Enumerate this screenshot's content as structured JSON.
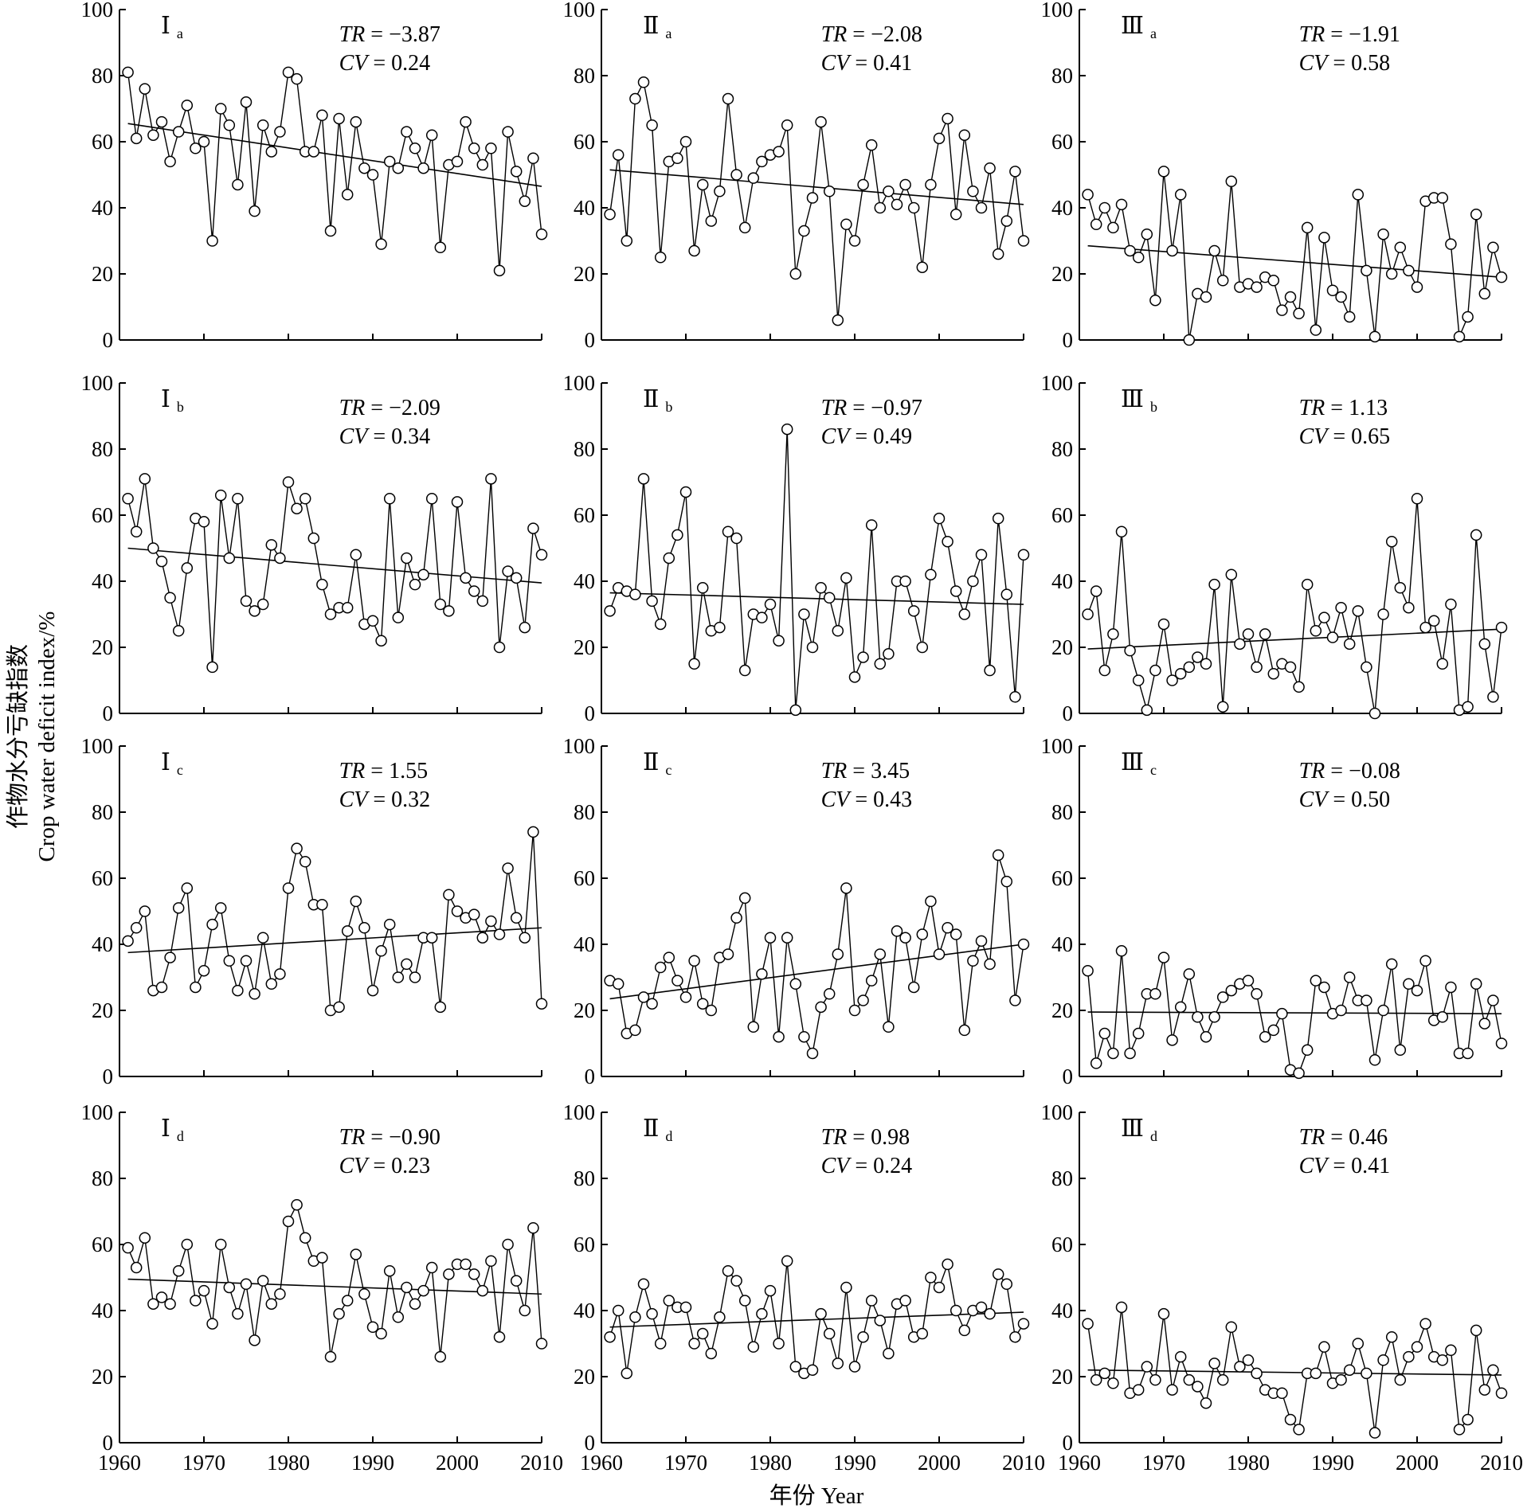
{
  "figure": {
    "ylabel_cn": "作物水分亏缺指数",
    "ylabel_en": "Crop water deficit index/%",
    "xlabel": "年份 Year"
  },
  "chart_data": [
    {
      "type": "line",
      "panel": "Ⅰa",
      "label_main": "Ⅰ",
      "label_sub": "a",
      "tr_key": "TR",
      "tr_value": "−3.87",
      "cv_key": "CV",
      "cv_value": "0.24",
      "xlim": [
        1960,
        2010
      ],
      "ylim": [
        0,
        100
      ],
      "yticks": [
        0,
        20,
        40,
        60,
        80,
        100
      ],
      "xticks": [
        1960,
        1970,
        1980,
        1990,
        2000,
        2010
      ],
      "x_start": 1961,
      "values": [
        81,
        61,
        76,
        62,
        66,
        54,
        63,
        71,
        58,
        60,
        30,
        70,
        65,
        47,
        72,
        39,
        65,
        57,
        63,
        81,
        79,
        57,
        57,
        68,
        33,
        67,
        44,
        66,
        52,
        50,
        29,
        54,
        52,
        63,
        58,
        52,
        62,
        28,
        53,
        54,
        66,
        58,
        53,
        58,
        21,
        63,
        51,
        42,
        55,
        32
      ],
      "trend": [
        65.5,
        46.5
      ]
    },
    {
      "type": "line",
      "panel": "Ⅱa",
      "label_main": "Ⅱ",
      "label_sub": "a",
      "tr_key": "TR",
      "tr_value": "−2.08",
      "cv_key": "CV",
      "cv_value": "0.41",
      "xlim": [
        1960,
        2010
      ],
      "ylim": [
        0,
        100
      ],
      "yticks": [
        0,
        20,
        40,
        60,
        80,
        100
      ],
      "xticks": [
        1960,
        1970,
        1980,
        1990,
        2000,
        2010
      ],
      "x_start": 1961,
      "values": [
        38,
        56,
        30,
        73,
        78,
        65,
        25,
        54,
        55,
        60,
        27,
        47,
        36,
        45,
        73,
        50,
        34,
        49,
        54,
        56,
        57,
        65,
        20,
        33,
        43,
        66,
        45,
        6,
        35,
        30,
        47,
        59,
        40,
        45,
        41,
        47,
        40,
        22,
        47,
        61,
        67,
        38,
        62,
        45,
        40,
        52,
        26,
        36,
        51,
        30
      ],
      "trend": [
        51.5,
        41
      ]
    },
    {
      "type": "line",
      "panel": "Ⅲa",
      "label_main": "Ⅲ",
      "label_sub": "a",
      "tr_key": "TR",
      "tr_value": "−1.91",
      "cv_key": "CV",
      "cv_value": "0.58",
      "xlim": [
        1960,
        2010
      ],
      "ylim": [
        0,
        100
      ],
      "yticks": [
        0,
        20,
        40,
        60,
        80,
        100
      ],
      "xticks": [
        1960,
        1970,
        1980,
        1990,
        2000,
        2010
      ],
      "x_start": 1961,
      "values": [
        44,
        35,
        40,
        34,
        41,
        27,
        25,
        32,
        12,
        51,
        27,
        44,
        0,
        14,
        13,
        27,
        18,
        48,
        16,
        17,
        16,
        19,
        18,
        9,
        13,
        8,
        34,
        3,
        31,
        15,
        13,
        7,
        44,
        21,
        1,
        32,
        20,
        28,
        21,
        16,
        42,
        43,
        43,
        29,
        1,
        7,
        38,
        14,
        28,
        19
      ],
      "trend": [
        28.5,
        19
      ]
    },
    {
      "type": "line",
      "panel": "Ⅰb",
      "label_main": "Ⅰ",
      "label_sub": "b",
      "tr_key": "TR",
      "tr_value": "−2.09",
      "cv_key": "CV",
      "cv_value": "0.34",
      "xlim": [
        1960,
        2010
      ],
      "ylim": [
        0,
        100
      ],
      "yticks": [
        0,
        20,
        40,
        60,
        80,
        100
      ],
      "xticks": [
        1960,
        1970,
        1980,
        1990,
        2000,
        2010
      ],
      "x_start": 1961,
      "values": [
        65,
        55,
        71,
        50,
        46,
        35,
        25,
        44,
        59,
        58,
        14,
        66,
        47,
        65,
        34,
        31,
        33,
        51,
        47,
        70,
        62,
        65,
        53,
        39,
        30,
        32,
        32,
        48,
        27,
        28,
        22,
        65,
        29,
        47,
        39,
        42,
        65,
        33,
        31,
        64,
        41,
        37,
        34,
        71,
        20,
        43,
        41,
        26,
        56,
        48
      ],
      "trend": [
        50,
        39.5
      ]
    },
    {
      "type": "line",
      "panel": "Ⅱb",
      "label_main": "Ⅱ",
      "label_sub": "b",
      "tr_key": "TR",
      "tr_value": "−0.97",
      "cv_key": "CV",
      "cv_value": "0.49",
      "xlim": [
        1960,
        2010
      ],
      "ylim": [
        0,
        100
      ],
      "yticks": [
        0,
        20,
        40,
        60,
        80,
        100
      ],
      "xticks": [
        1960,
        1970,
        1980,
        1990,
        2000,
        2010
      ],
      "x_start": 1961,
      "values": [
        31,
        38,
        37,
        36,
        71,
        34,
        27,
        47,
        54,
        67,
        15,
        38,
        25,
        26,
        55,
        53,
        13,
        30,
        29,
        33,
        22,
        86,
        1,
        30,
        20,
        38,
        35,
        25,
        41,
        11,
        17,
        57,
        15,
        18,
        40,
        40,
        31,
        20,
        42,
        59,
        52,
        37,
        30,
        40,
        48,
        13,
        59,
        36,
        5,
        48
      ],
      "trend": [
        36.5,
        33
      ]
    },
    {
      "type": "line",
      "panel": "Ⅲb",
      "label_main": "Ⅲ",
      "label_sub": "b",
      "tr_key": "TR",
      "tr_value": "1.13",
      "cv_key": "CV",
      "cv_value": "0.65",
      "xlim": [
        1960,
        2010
      ],
      "ylim": [
        0,
        100
      ],
      "yticks": [
        0,
        20,
        40,
        60,
        80,
        100
      ],
      "xticks": [
        1960,
        1970,
        1980,
        1990,
        2000,
        2010
      ],
      "x_start": 1961,
      "values": [
        30,
        37,
        13,
        24,
        55,
        19,
        10,
        1,
        13,
        27,
        10,
        12,
        14,
        17,
        15,
        39,
        2,
        42,
        21,
        24,
        14,
        24,
        12,
        15,
        14,
        8,
        39,
        25,
        29,
        23,
        32,
        21,
        31,
        14,
        0,
        30,
        52,
        38,
        32,
        65,
        26,
        28,
        15,
        33,
        1,
        2,
        54,
        21,
        5,
        26
      ],
      "trend": [
        19.5,
        25.5
      ]
    },
    {
      "type": "line",
      "panel": "Ⅰc",
      "label_main": "Ⅰ",
      "label_sub": "c",
      "tr_key": "TR",
      "tr_value": "1.55",
      "cv_key": "CV",
      "cv_value": "0.32",
      "xlim": [
        1960,
        2010
      ],
      "ylim": [
        0,
        100
      ],
      "yticks": [
        0,
        20,
        40,
        60,
        80,
        100
      ],
      "xticks": [
        1960,
        1970,
        1980,
        1990,
        2000,
        2010
      ],
      "x_start": 1961,
      "values": [
        41,
        45,
        50,
        26,
        27,
        36,
        51,
        57,
        27,
        32,
        46,
        51,
        35,
        26,
        35,
        25,
        42,
        28,
        31,
        57,
        69,
        65,
        52,
        52,
        20,
        21,
        44,
        53,
        45,
        26,
        38,
        46,
        30,
        34,
        30,
        42,
        42,
        21,
        55,
        50,
        48,
        49,
        42,
        47,
        43,
        63,
        48,
        42,
        74,
        22
      ],
      "trend": [
        37.5,
        45
      ]
    },
    {
      "type": "line",
      "panel": "Ⅱc",
      "label_main": "Ⅱ",
      "label_sub": "c",
      "tr_key": "TR",
      "tr_value": "3.45",
      "cv_key": "CV",
      "cv_value": "0.43",
      "xlim": [
        1960,
        2010
      ],
      "ylim": [
        0,
        100
      ],
      "yticks": [
        0,
        20,
        40,
        60,
        80,
        100
      ],
      "xticks": [
        1960,
        1970,
        1980,
        1990,
        2000,
        2010
      ],
      "x_start": 1961,
      "values": [
        29,
        28,
        13,
        14,
        24,
        22,
        33,
        36,
        29,
        24,
        35,
        22,
        20,
        36,
        37,
        48,
        54,
        15,
        31,
        42,
        12,
        42,
        28,
        12,
        7,
        21,
        25,
        37,
        57,
        20,
        23,
        29,
        37,
        15,
        44,
        42,
        27,
        43,
        53,
        37,
        45,
        43,
        14,
        35,
        41,
        34,
        67,
        59,
        23,
        40
      ],
      "trend": [
        23.5,
        40
      ]
    },
    {
      "type": "line",
      "panel": "Ⅲc",
      "label_main": "Ⅲ",
      "label_sub": "c",
      "tr_key": "TR",
      "tr_value": "−0.08",
      "cv_key": "CV",
      "cv_value": "0.50",
      "xlim": [
        1960,
        2010
      ],
      "ylim": [
        0,
        100
      ],
      "yticks": [
        0,
        20,
        40,
        60,
        80,
        100
      ],
      "xticks": [
        1960,
        1970,
        1980,
        1990,
        2000,
        2010
      ],
      "x_start": 1961,
      "values": [
        32,
        4,
        13,
        7,
        38,
        7,
        13,
        25,
        25,
        36,
        11,
        21,
        31,
        18,
        12,
        18,
        24,
        26,
        28,
        29,
        25,
        12,
        14,
        19,
        2,
        1,
        8,
        29,
        27,
        19,
        20,
        30,
        23,
        23,
        5,
        20,
        34,
        8,
        28,
        26,
        35,
        17,
        18,
        27,
        7,
        7,
        28,
        16,
        23,
        10
      ],
      "trend": [
        19.5,
        19
      ]
    },
    {
      "type": "line",
      "panel": "Ⅰd",
      "label_main": "Ⅰ",
      "label_sub": "d",
      "tr_key": "TR",
      "tr_value": "−0.90",
      "cv_key": "CV",
      "cv_value": "0.23",
      "xlim": [
        1960,
        2010
      ],
      "ylim": [
        0,
        100
      ],
      "yticks": [
        0,
        20,
        40,
        60,
        80,
        100
      ],
      "xticks": [
        1960,
        1970,
        1980,
        1990,
        2000,
        2010
      ],
      "x_start": 1961,
      "values": [
        59,
        53,
        62,
        42,
        44,
        42,
        52,
        60,
        43,
        46,
        36,
        60,
        47,
        39,
        48,
        31,
        49,
        42,
        45,
        67,
        72,
        62,
        55,
        56,
        26,
        39,
        43,
        57,
        45,
        35,
        33,
        52,
        38,
        47,
        42,
        46,
        53,
        26,
        51,
        54,
        54,
        51,
        46,
        55,
        32,
        60,
        49,
        40,
        65,
        30
      ],
      "trend": [
        49.5,
        45
      ]
    },
    {
      "type": "line",
      "panel": "Ⅱd",
      "label_main": "Ⅱ",
      "label_sub": "d",
      "tr_key": "TR",
      "tr_value": "0.98",
      "cv_key": "CV",
      "cv_value": "0.24",
      "xlim": [
        1960,
        2010
      ],
      "ylim": [
        0,
        100
      ],
      "yticks": [
        0,
        20,
        40,
        60,
        80,
        100
      ],
      "xticks": [
        1960,
        1970,
        1980,
        1990,
        2000,
        2010
      ],
      "x_start": 1961,
      "values": [
        32,
        40,
        21,
        38,
        48,
        39,
        30,
        43,
        41,
        41,
        30,
        33,
        27,
        38,
        52,
        49,
        43,
        29,
        39,
        46,
        30,
        55,
        23,
        21,
        22,
        39,
        33,
        24,
        47,
        23,
        32,
        43,
        37,
        27,
        42,
        43,
        32,
        33,
        50,
        47,
        54,
        40,
        34,
        40,
        41,
        39,
        51,
        48,
        32,
        36
      ],
      "trend": [
        35,
        39.5
      ]
    },
    {
      "type": "line",
      "panel": "Ⅲd",
      "label_main": "Ⅲ",
      "label_sub": "d",
      "tr_key": "TR",
      "tr_value": "0.46",
      "cv_key": "CV",
      "cv_value": "0.41",
      "xlim": [
        1960,
        2010
      ],
      "ylim": [
        0,
        100
      ],
      "yticks": [
        0,
        20,
        40,
        60,
        80,
        100
      ],
      "xticks": [
        1960,
        1970,
        1980,
        1990,
        2000,
        2010
      ],
      "x_start": 1961,
      "values": [
        36,
        19,
        21,
        18,
        41,
        15,
        16,
        23,
        19,
        39,
        16,
        26,
        19,
        17,
        12,
        24,
        19,
        35,
        23,
        25,
        21,
        16,
        15,
        15,
        7,
        4,
        21,
        21,
        29,
        18,
        19,
        22,
        30,
        21,
        3,
        25,
        32,
        19,
        26,
        29,
        36,
        26,
        25,
        28,
        4,
        7,
        34,
        16,
        22,
        15
      ],
      "trend": [
        22,
        20.5
      ]
    }
  ]
}
